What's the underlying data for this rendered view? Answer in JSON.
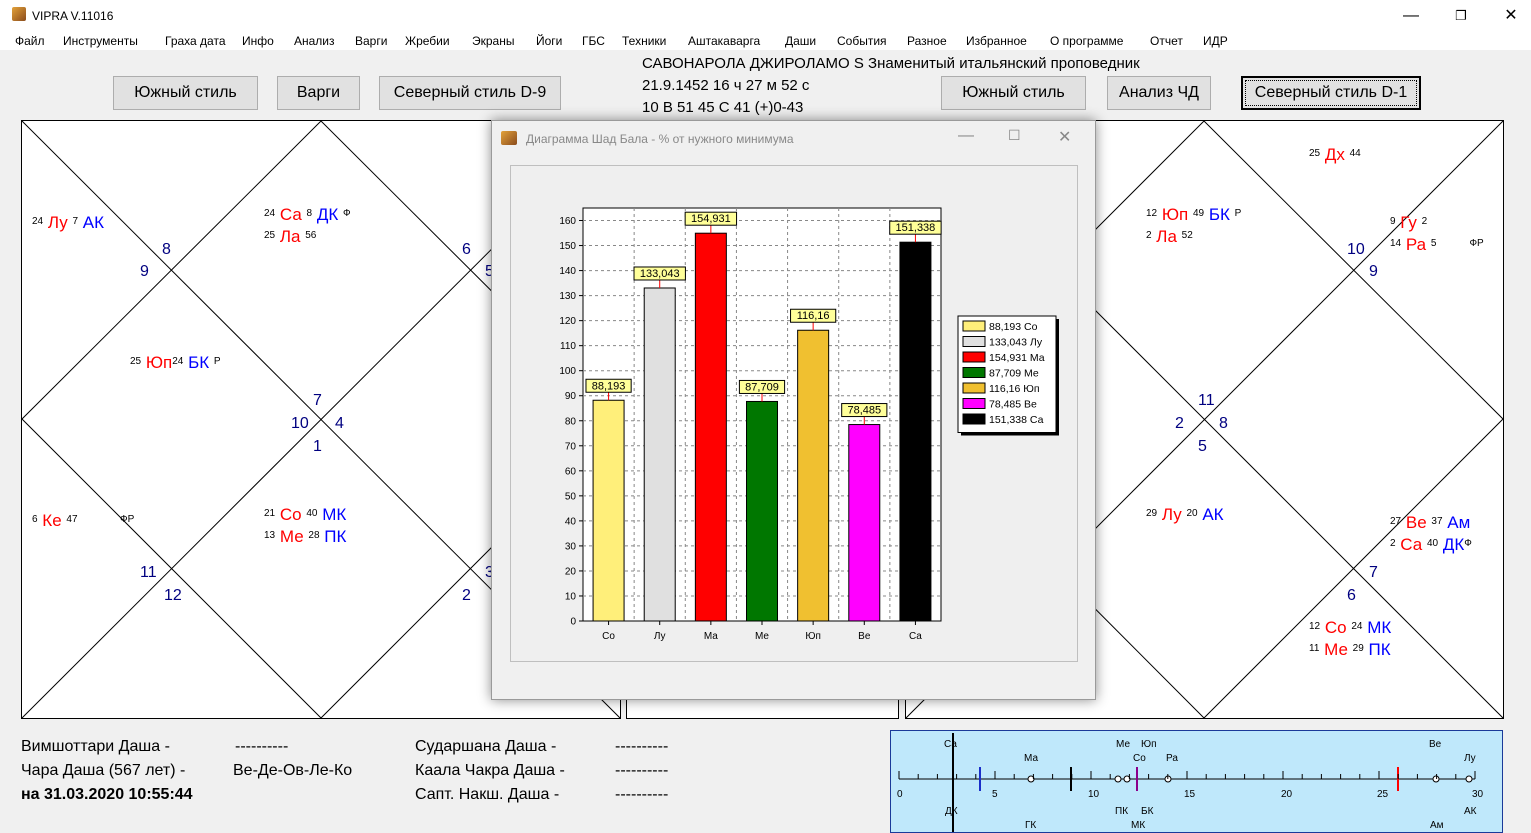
{
  "app": {
    "title": "VIPRA V.11016"
  },
  "menu": [
    "Файл",
    "Инструменты",
    "Граха дата",
    "Инфо",
    "Анализ",
    "Варги",
    "Жребии",
    "Экраны",
    "Йоги",
    "ГБС",
    "Техники",
    "Аштакаварга",
    "Даши",
    "События",
    "Разное",
    "Избранное",
    "О программе",
    "Отчет",
    "ИДР"
  ],
  "toolbar": {
    "left_south": "Южный стиль",
    "vargi": "Варги",
    "north_d9": "Северный стиль D-9",
    "right_south": "Южный стиль",
    "analysis_chd": "Анализ ЧД",
    "north_d1": "Северный стиль D-1"
  },
  "header": {
    "line1": "САВОНАРОЛА ДЖИРОЛАМО S Знаменитый итальянский проповедник",
    "line2": "21.9.1452   16 ч 27 м 52 с",
    "line3": "10 В 51   45 С 41   (+)0-43"
  },
  "left_chart": {
    "houses": [
      "8",
      "9",
      "6",
      "5",
      "7",
      "10",
      "4",
      "1",
      "11",
      "12",
      "3",
      "2"
    ],
    "planets": [
      {
        "deg": "24",
        "name": "Лу",
        "deg2": "7",
        "karaka": "АК"
      },
      {
        "deg": "24",
        "name": "Са",
        "deg2": "8",
        "karaka": "ДК",
        "mark": "Ф"
      },
      {
        "deg": "25",
        "name": "Ла",
        "deg2": "56"
      },
      {
        "deg": "25",
        "name": "Юп",
        "deg2": "24",
        "karaka": "БК",
        "mark": "Р"
      },
      {
        "deg": "6",
        "name": "Ке",
        "deg2": "47",
        "mark": "ФР"
      },
      {
        "deg": "21",
        "name": "Со",
        "deg2": "40",
        "karaka": "МК"
      },
      {
        "deg": "13",
        "name": "Ме",
        "deg2": "28",
        "karaka": "ПК"
      }
    ]
  },
  "right_chart": {
    "houses": [
      "10",
      "9",
      "11",
      "2",
      "8",
      "5",
      "7",
      "6"
    ],
    "planets": [
      {
        "deg": "25",
        "name": "Дх",
        "deg2": "44"
      },
      {
        "deg": "12",
        "name": "Юп",
        "deg2": "49",
        "karaka": "БК",
        "mark": "Р"
      },
      {
        "deg": "2",
        "name": "Ла",
        "deg2": "52"
      },
      {
        "deg": "9",
        "name": "Гу",
        "deg2": "2"
      },
      {
        "deg": "14",
        "name": "Ра",
        "deg2": "5",
        "mark": "ФР"
      },
      {
        "deg": "29",
        "name": "Лу",
        "deg2": "20",
        "karaka": "АК"
      },
      {
        "deg": "27",
        "name": "Ве",
        "deg2": "37",
        "karaka": "Ам"
      },
      {
        "deg": "2",
        "name": "Са",
        "deg2": "40",
        "karaka": "ДК",
        "mark": "Ф"
      },
      {
        "deg": "12",
        "name": "Со",
        "deg2": "24",
        "karaka": "МК"
      },
      {
        "deg": "11",
        "name": "Ме",
        "deg2": "29",
        "karaka": "ПК"
      }
    ]
  },
  "dialog": {
    "title": "Диаграмма Шад Бала - % от нужного минимума"
  },
  "chart_data": {
    "type": "bar",
    "categories": [
      "Со",
      "Лу",
      "Ма",
      "Ме",
      "Юп",
      "Ве",
      "Са"
    ],
    "values": [
      88.193,
      133.043,
      154.931,
      87.709,
      116.16,
      78.485,
      151.338
    ],
    "value_labels": [
      "88,193",
      "133,043",
      "154,931",
      "87,709",
      "116,16",
      "78,485",
      "151,338"
    ],
    "colors": [
      "#ffef7a",
      "#e0e0e0",
      "#ff0000",
      "#007700",
      "#f0c030",
      "#ff00ff",
      "#000000"
    ],
    "legend": [
      "88,193 Со",
      "133,043 Лу",
      "154,931 Ма",
      "87,709 Ме",
      "116,16 Юп",
      "78,485 Ве",
      "151,338 Са"
    ],
    "legend_position": "right",
    "yticks": [
      "0",
      "10",
      "20",
      "30",
      "40",
      "50",
      "60",
      "70",
      "80",
      "90",
      "100",
      "110",
      "120",
      "130",
      "140",
      "150",
      "160"
    ],
    "ylim": [
      0,
      165
    ],
    "grid": true
  },
  "bottom": {
    "vim_label": "Вимшоттари Даша -",
    "vim_value": "----------",
    "chara_label": "Чара Даша (567 лет) -",
    "chara_value": "Ве-Де-Ов-Ле-Ко",
    "date_label": "на 31.03.2020 10:55:44",
    "sud_label": "Сударшана Даша -",
    "sud_value": "----------",
    "kaala_label": "Каала Чакра Даша -",
    "kaala_value": "----------",
    "sapt_label": "Сапт. Накш. Даша -",
    "sapt_value": "----------"
  },
  "timeline": {
    "ticks": [
      "0",
      "5",
      "10",
      "15",
      "20",
      "25",
      "30"
    ],
    "top_labels": [
      "Са",
      "Ма",
      "Ме",
      "Юп",
      "Со",
      "Ра",
      "Ве",
      "Лу"
    ],
    "bottom_labels": [
      "ДК",
      "ГК",
      "ПК",
      "БК",
      "МК",
      "АК",
      "Ам"
    ]
  }
}
